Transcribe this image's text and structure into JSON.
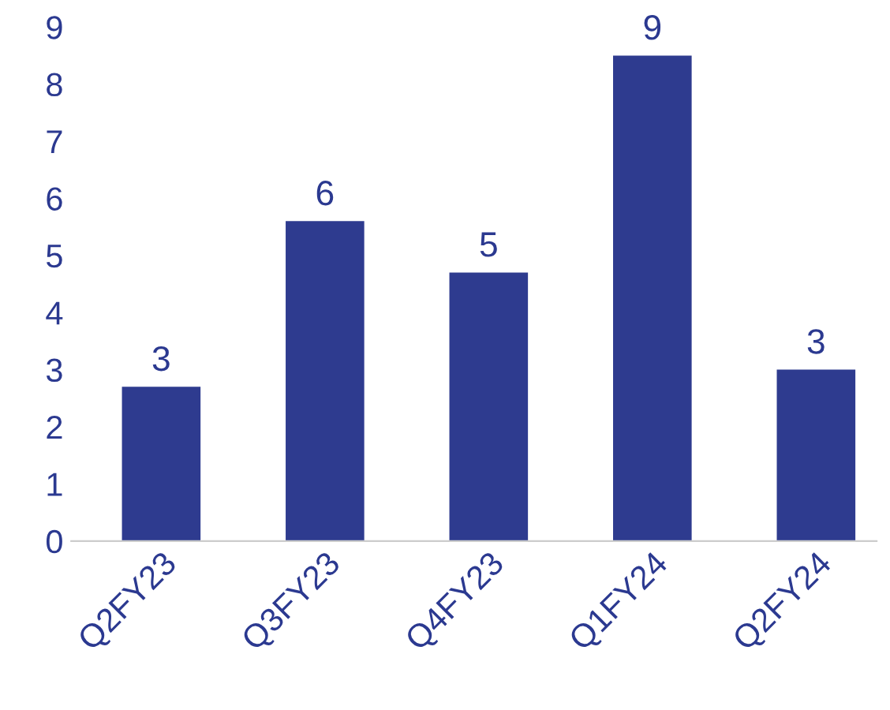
{
  "chart_data": {
    "type": "bar",
    "categories": [
      "Q2FY23",
      "Q3FY23",
      "Q4FY23",
      "Q1FY24",
      "Q2FY24"
    ],
    "values": [
      2.7,
      5.6,
      4.7,
      8.5,
      3.0
    ],
    "value_labels": [
      "3",
      "6",
      "5",
      "9",
      "3"
    ],
    "color": "#2e3b8f",
    "ylim": [
      0,
      9
    ],
    "yticks": [
      0,
      1,
      2,
      3,
      4,
      5,
      6,
      7,
      8,
      9
    ],
    "grid": false
  }
}
